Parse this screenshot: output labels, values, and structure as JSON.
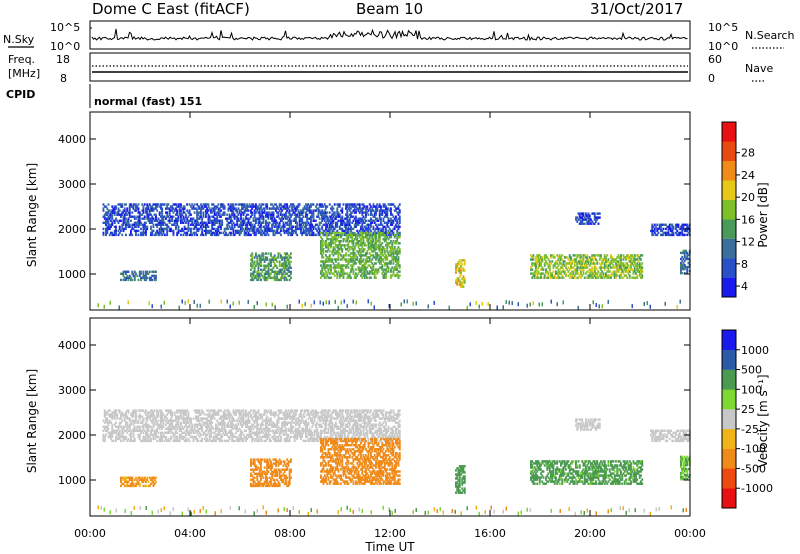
{
  "header": {
    "station": "Dome C East (fitACF)",
    "beam": "Beam 10",
    "date": "31/Oct/2017"
  },
  "colors": {
    "power_scale": [
      "#1a1aee",
      "#2850c8",
      "#3c6e9c",
      "#4a9a5a",
      "#7ec02a",
      "#e6c818",
      "#f08a18",
      "#e84a10",
      "#e81010"
    ],
    "velocity_scale": [
      "#e81010",
      "#ee4a10",
      "#f08a18",
      "#f0b418",
      "#c8c8c8",
      "#7ed830",
      "#4a9a50",
      "#2a5aa8",
      "#1a1aee"
    ],
    "ground_scatter": "#c8c8c8"
  },
  "panels": {
    "nsky": {
      "label": "N.Sky",
      "ticks": [
        "10^5",
        "10^0"
      ],
      "right_ticks": [
        "10^5",
        "10^0"
      ],
      "right_label": "N.Search"
    },
    "freq": {
      "label_1": "Freq.",
      "label_2": "[MHz]",
      "ticks": [
        "18",
        "8"
      ],
      "right_ticks": [
        "60",
        "0"
      ],
      "right_label": "Nave"
    },
    "cpid": {
      "label": "CPID",
      "value": "normal (fast) 151"
    }
  },
  "colorbars": {
    "power": {
      "title": "Power [dB]",
      "ticks": [
        "28",
        "24",
        "20",
        "16",
        "12",
        "8",
        "4"
      ]
    },
    "velocity": {
      "title": "Velocity [m s⁻¹]",
      "ticks": [
        "1000",
        "500",
        "100",
        "25",
        "-25",
        "-100",
        "-500",
        "-1000"
      ]
    }
  },
  "chart_data": [
    {
      "type": "heatmap",
      "title": "",
      "ylabel": "Slant Range [km]",
      "xlabel": "",
      "xlim": [
        0,
        24
      ],
      "ylim": [
        200,
        4600
      ],
      "y_ticks": [
        "1000",
        "2000",
        "3000",
        "4000"
      ],
      "x_ticks": [
        "00:00",
        "04:00",
        "08:00",
        "12:00",
        "16:00",
        "20:00",
        "00:00"
      ],
      "quantity": "Power [dB]",
      "range_bands": [
        {
          "t0": 0.5,
          "t1": 12.4,
          "r0": 1850,
          "r1": 2550,
          "value": 6
        },
        {
          "t0": 1.2,
          "t1": 2.6,
          "r0": 850,
          "r1": 1050,
          "value": 10
        },
        {
          "t0": 6.4,
          "t1": 8.0,
          "r0": 850,
          "r1": 1450,
          "value": 14
        },
        {
          "t0": 9.2,
          "t1": 12.4,
          "r0": 900,
          "r1": 1900,
          "value": 16
        },
        {
          "t0": 14.6,
          "t1": 15.0,
          "r0": 700,
          "r1": 1300,
          "value": 22
        },
        {
          "t0": 17.6,
          "t1": 22.1,
          "r0": 900,
          "r1": 1400,
          "value": 18
        },
        {
          "t0": 19.4,
          "t1": 20.4,
          "r0": 2100,
          "r1": 2350,
          "value": 6
        },
        {
          "t0": 22.4,
          "t1": 24.0,
          "r0": 1850,
          "r1": 2100,
          "value": 6
        },
        {
          "t0": 23.6,
          "t1": 24.0,
          "r0": 1000,
          "r1": 1500,
          "value": 10
        }
      ]
    },
    {
      "type": "heatmap",
      "title": "",
      "ylabel": "Slant Range [km]",
      "xlabel": "Time UT",
      "xlim": [
        0,
        24
      ],
      "ylim": [
        200,
        4600
      ],
      "y_ticks": [
        "1000",
        "2000",
        "3000",
        "4000"
      ],
      "x_ticks": [
        "00:00",
        "04:00",
        "08:00",
        "12:00",
        "16:00",
        "20:00",
        "00:00"
      ],
      "quantity": "Velocity [m s⁻¹]",
      "range_bands": [
        {
          "t0": 0.5,
          "t1": 12.4,
          "r0": 1850,
          "r1": 2550,
          "value": 0
        },
        {
          "t0": 1.2,
          "t1": 2.6,
          "r0": 850,
          "r1": 1050,
          "value": -120
        },
        {
          "t0": 6.4,
          "t1": 8.0,
          "r0": 850,
          "r1": 1450,
          "value": -200
        },
        {
          "t0": 9.2,
          "t1": 12.4,
          "r0": 900,
          "r1": 1900,
          "value": -200
        },
        {
          "t0": 14.6,
          "t1": 15.0,
          "r0": 700,
          "r1": 1300,
          "value": 200
        },
        {
          "t0": 17.6,
          "t1": 22.1,
          "r0": 900,
          "r1": 1400,
          "value": 150
        },
        {
          "t0": 19.4,
          "t1": 20.4,
          "r0": 2100,
          "r1": 2350,
          "value": 0
        },
        {
          "t0": 22.4,
          "t1": 24.0,
          "r0": 1850,
          "r1": 2100,
          "value": 0
        },
        {
          "t0": 23.6,
          "t1": 24.0,
          "r0": 1000,
          "r1": 1500,
          "value": 100
        }
      ]
    }
  ]
}
